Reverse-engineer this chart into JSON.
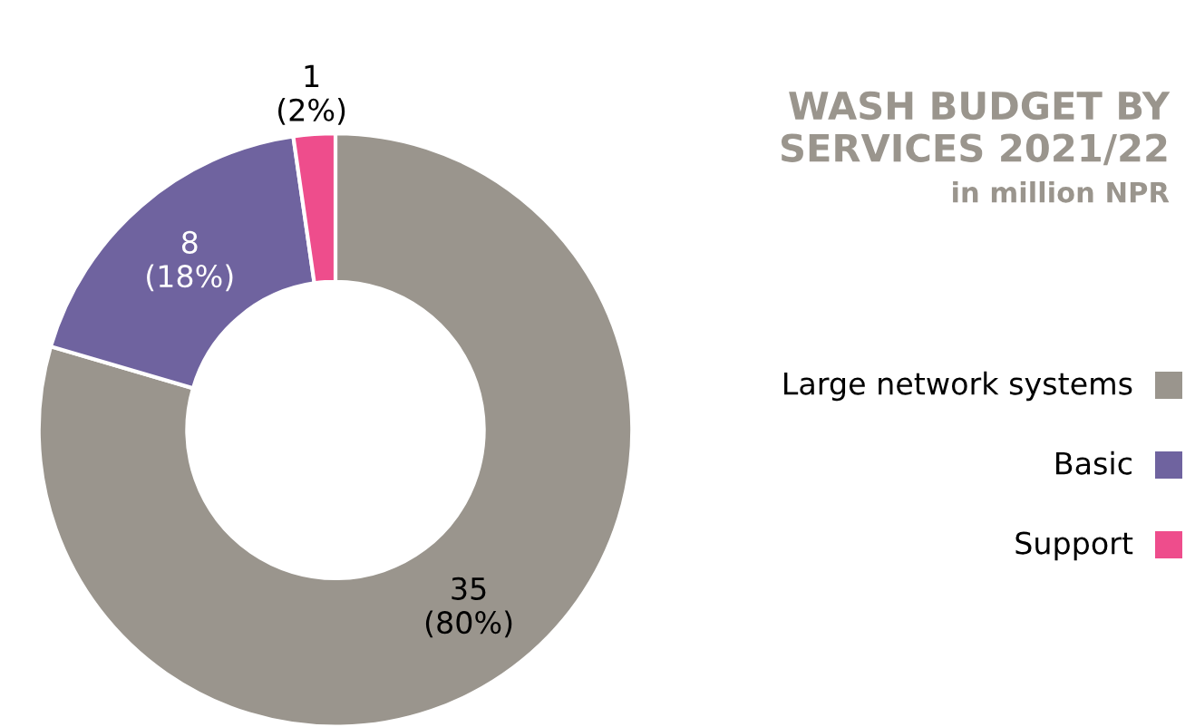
{
  "chart_data": {
    "type": "donut",
    "title": "WASH BUDGET BY\nSERVICES 2021/22",
    "subtitle": "in million NPR",
    "categories": [
      "Large network systems",
      "Basic",
      "Support"
    ],
    "values": [
      35,
      8,
      1
    ],
    "colors": [
      "#9a958d",
      "#6f639f",
      "#ee4d8c"
    ],
    "value_labels": [
      "35\n(80%)",
      "8\n(18%)",
      "1\n(2%)"
    ],
    "legend": "right"
  }
}
